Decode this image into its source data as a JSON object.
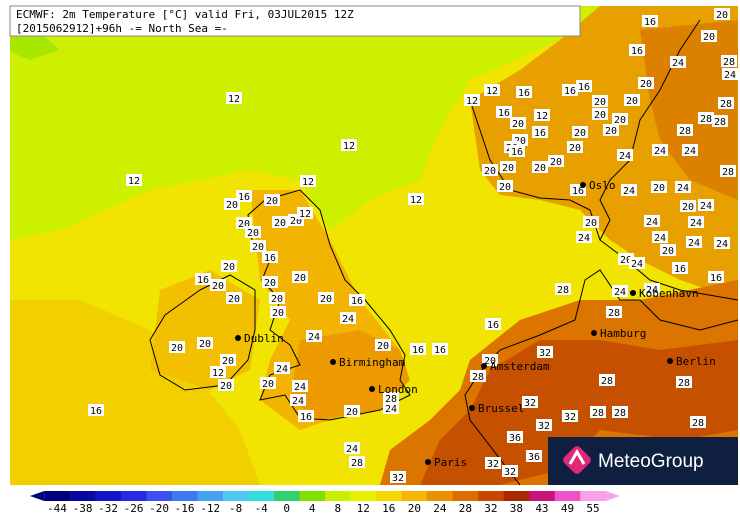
{
  "header": {
    "title": "ECMWF: 2m Temperature [°C] valid Fri, 03JUL2015 12Z",
    "subtitle": "[2015062912]+96h -= North Sea =-"
  },
  "cities": [
    "Oslo",
    "Kobenhavn",
    "Hamburg",
    "Berlin",
    "Amsterdam",
    "Brussel",
    "Paris",
    "London",
    "Birmingham",
    "Dublin"
  ],
  "temperature_labels": [
    12,
    12,
    12,
    12,
    12,
    16,
    16,
    20,
    20,
    20,
    20,
    20,
    12,
    20,
    20,
    16,
    20,
    16,
    20,
    20,
    20,
    20,
    20,
    20,
    20,
    16,
    24,
    24,
    20,
    20,
    20,
    20,
    20,
    24,
    24,
    24,
    12,
    16,
    20,
    20,
    16,
    16,
    28,
    24,
    24,
    28,
    32,
    16,
    20,
    28,
    32,
    32,
    32,
    28,
    28,
    28,
    28,
    28,
    32,
    36,
    36,
    32,
    32,
    28,
    20,
    24,
    24,
    24,
    20,
    24,
    24,
    24,
    16,
    16,
    20,
    24,
    24,
    24,
    28,
    24,
    20,
    24,
    20,
    24,
    24,
    24,
    24,
    28,
    28,
    28,
    28,
    28,
    12,
    12,
    16,
    16,
    20,
    20,
    20,
    16,
    12,
    16,
    16,
    16,
    20,
    20,
    20,
    20,
    20,
    20,
    20,
    20,
    20,
    20,
    20,
    20,
    16,
    16,
    16,
    20,
    20,
    24,
    24,
    28,
    20
  ],
  "colorbar": {
    "ticks": [
      -44,
      -38,
      -32,
      -26,
      -20,
      -16,
      -12,
      -8,
      -4,
      0,
      4,
      8,
      12,
      16,
      20,
      24,
      28,
      32,
      38,
      43,
      49,
      55
    ],
    "colors": [
      "#000080",
      "#0a0aa0",
      "#1414c8",
      "#2828e6",
      "#3c50f0",
      "#3c78f0",
      "#46a0f0",
      "#50c8f0",
      "#30e0e0",
      "#30d070",
      "#80e000",
      "#c8f000",
      "#eaf000",
      "#f4d800",
      "#f4b400",
      "#ec9000",
      "#e06c00",
      "#c84800",
      "#a82800",
      "#c8147a",
      "#f050c8",
      "#f8a0e8"
    ]
  },
  "logo": "MeteoGroup"
}
